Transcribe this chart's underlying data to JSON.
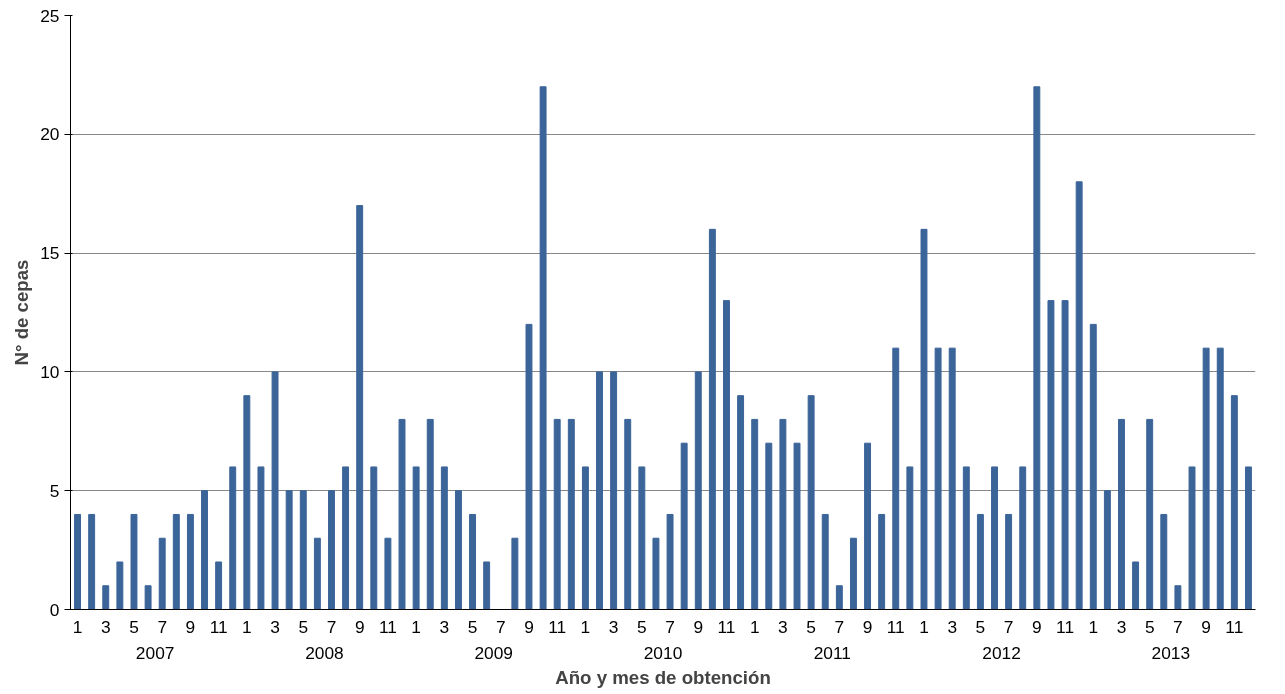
{
  "chart_data": {
    "type": "bar",
    "xlabel": "Año y mes de obtención",
    "ylabel": "N° de cepas",
    "categories": [
      "1",
      null,
      "3",
      null,
      "5",
      null,
      "7",
      null,
      "9",
      null,
      "11",
      null,
      "1",
      null,
      "3",
      null,
      "5",
      null,
      "7",
      null,
      "9",
      null,
      "11",
      null,
      "1",
      null,
      "3",
      null,
      "5",
      null,
      "7",
      null,
      "9",
      null,
      "11",
      null,
      "1",
      null,
      "3",
      null,
      "5",
      null,
      "7",
      null,
      "9",
      null,
      "11",
      null,
      "1",
      null,
      "3",
      null,
      "5",
      null,
      "7",
      null,
      "9",
      null,
      "11",
      null,
      "1",
      null,
      "3",
      null,
      "5",
      null,
      "7",
      null,
      "9",
      null,
      "11",
      null,
      "1",
      null,
      "3",
      null,
      "5",
      null,
      "7",
      null,
      "9",
      null,
      "11",
      null
    ],
    "values": [
      4,
      4,
      1,
      2,
      4,
      1,
      3,
      4,
      4,
      5,
      2,
      6,
      9,
      6,
      10,
      5,
      5,
      3,
      5,
      6,
      17,
      6,
      3,
      8,
      6,
      8,
      6,
      5,
      4,
      2,
      0,
      3,
      12,
      22,
      8,
      8,
      6,
      10,
      10,
      8,
      6,
      3,
      4,
      7,
      10,
      16,
      13,
      9,
      8,
      7,
      8,
      7,
      9,
      4,
      1,
      3,
      7,
      4,
      11,
      6,
      16,
      11,
      11,
      6,
      4,
      6,
      4,
      6,
      22,
      13,
      13,
      18,
      12,
      5,
      8,
      2,
      8,
      4,
      1,
      6,
      11,
      11,
      9,
      6
    ],
    "color": "#3b6499",
    "annotations": [
      "2007",
      "2008",
      "2009",
      "2010",
      "2011",
      "2012",
      "2013"
    ],
    "ylim": [
      0,
      25
    ],
    "yticks": [
      0,
      5,
      10,
      15,
      20,
      25
    ],
    "grid": "y"
  }
}
